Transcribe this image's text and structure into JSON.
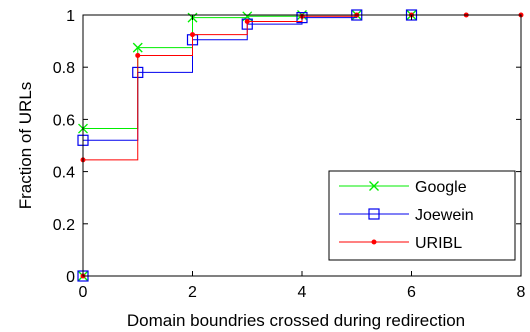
{
  "chart_data": {
    "type": "line",
    "step": "post",
    "xlabel": "Domain boundries crossed during redirection",
    "ylabel": "Fraction of URLs",
    "xlim": [
      0,
      8
    ],
    "ylim": [
      0,
      1
    ],
    "xticks": [
      0,
      2,
      4,
      6,
      8
    ],
    "yticks": [
      0,
      0.2,
      0.4,
      0.6,
      0.8,
      1
    ],
    "xtick_labels": [
      "0",
      "2",
      "4",
      "6",
      "8"
    ],
    "ytick_labels": [
      "0",
      "0.2",
      "0.4",
      "0.6",
      "0.8",
      "1"
    ],
    "grid": false,
    "legend_position": "bottom-right",
    "series": [
      {
        "name": "Google",
        "color": "#00ee00",
        "marker": "x",
        "x": [
          0,
          1,
          2,
          3,
          4,
          5,
          6
        ],
        "y": [
          0.565,
          0.875,
          0.99,
          0.995,
          1.0,
          1.0,
          1.0
        ]
      },
      {
        "name": "Joewein",
        "color": "#0000ee",
        "marker": "square",
        "x": [
          0,
          1,
          2,
          3,
          4,
          5,
          6
        ],
        "y": [
          0.52,
          0.78,
          0.905,
          0.965,
          0.99,
          1.0,
          1.0
        ]
      },
      {
        "name": "URIBL",
        "color": "#ff0000",
        "marker": "dot",
        "x": [
          0,
          1,
          2,
          3,
          4,
          5,
          6,
          7,
          8
        ],
        "y": [
          0.445,
          0.845,
          0.925,
          0.975,
          0.995,
          1.0,
          1.0,
          1.0,
          1.0
        ]
      }
    ]
  }
}
